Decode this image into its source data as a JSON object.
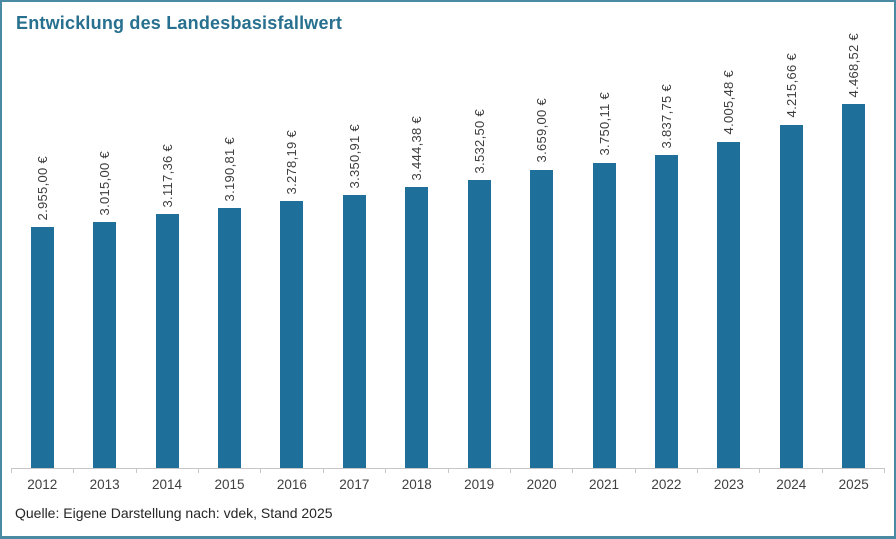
{
  "title": "Entwicklung des Landesbasisfallwert",
  "source_note": "Quelle: Eigene Darstellung nach: vdek, Stand 2025",
  "colors": {
    "bar": "#1e6f99",
    "title": "#27708f",
    "frame_border": "#4a8aa3",
    "axis": "#c6c6c6",
    "value_label": "#3d3d3d",
    "year_label": "#404040"
  },
  "chart_data": {
    "type": "bar",
    "title": "Entwicklung des Landesbasisfallwert",
    "categories": [
      "2012",
      "2013",
      "2014",
      "2015",
      "2016",
      "2017",
      "2018",
      "2019",
      "2020",
      "2021",
      "2022",
      "2023",
      "2024",
      "2025"
    ],
    "values": [
      2955.0,
      3015.0,
      3117.36,
      3190.81,
      3278.19,
      3350.91,
      3444.38,
      3532.5,
      3659.0,
      3750.11,
      3837.75,
      4005.48,
      4215.66,
      4468.52
    ],
    "value_labels": [
      "2.955,00 €",
      "3.015,00 €",
      "3.117,36 €",
      "3.190,81 €",
      "3.278,19 €",
      "3.350,91 €",
      "3.444,38 €",
      "3.532,50 €",
      "3.659,00 €",
      "3.750,11 €",
      "3.837,75 €",
      "4.005,48 €",
      "4.215,66 €",
      "4.468,52 €"
    ],
    "value_label_orientation": "rotated-90",
    "xlabel": "",
    "ylabel": "",
    "ylim": [
      0,
      4468.52
    ],
    "grid": false,
    "legend": false,
    "y_axis_visible": false
  }
}
